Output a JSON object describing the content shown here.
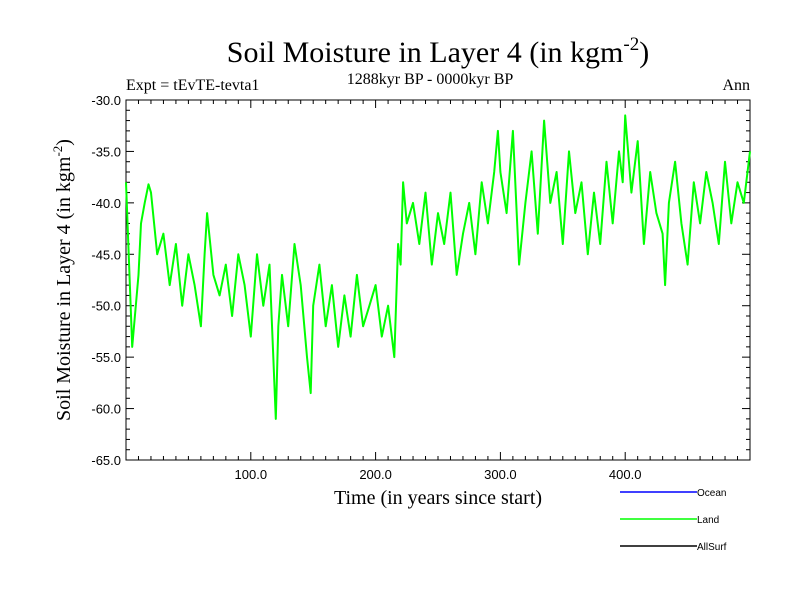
{
  "chart_data": {
    "type": "line",
    "title_main": "Soil Moisture in Layer 4 (in kgm",
    "title_sup": "-2",
    "title_close": ")",
    "subtitle_left": "Expt = tEvTE-tevta1",
    "subtitle_center": "1288kyr BP - 0000kyr BP",
    "subtitle_right": "Ann",
    "ylabel_main": "Soil Moisture in Layer 4 (in kgm",
    "ylabel_sup": "-2",
    "ylabel_close": ")",
    "xlabel": "Time (in years since start)",
    "xlim": [
      0,
      500
    ],
    "ylim": [
      -65,
      -30
    ],
    "y_ticks": [
      -30.0,
      -35.0,
      -40.0,
      -45.0,
      -50.0,
      -55.0,
      -60.0,
      -65.0
    ],
    "y_tick_labels": [
      "-30.0",
      "-35.0",
      "-40.0",
      "-45.0",
      "-50.0",
      "-55.0",
      "-60.0",
      "-65.0"
    ],
    "x_ticks": [
      100,
      200,
      300,
      400
    ],
    "x_tick_labels": [
      "100.0",
      "200.0",
      "300.0",
      "400.0"
    ],
    "legend": [
      {
        "name": "Ocean",
        "color": "#0000ff"
      },
      {
        "name": "Land",
        "color": "#00ff00"
      },
      {
        "name": "AllSurf",
        "color": "#000000"
      }
    ],
    "series": [
      {
        "name": "Land",
        "color": "#00ff00",
        "x": [
          0,
          5,
          10,
          12,
          15,
          18,
          20,
          25,
          30,
          35,
          40,
          45,
          50,
          55,
          60,
          63,
          65,
          70,
          75,
          80,
          85,
          90,
          95,
          100,
          105,
          110,
          115,
          118,
          120,
          122,
          125,
          130,
          135,
          140,
          145,
          148,
          150,
          155,
          160,
          165,
          170,
          175,
          180,
          185,
          190,
          195,
          200,
          205,
          210,
          215,
          218,
          220,
          222,
          225,
          230,
          235,
          240,
          245,
          250,
          255,
          260,
          265,
          270,
          275,
          280,
          285,
          290,
          295,
          298,
          300,
          305,
          310,
          315,
          320,
          325,
          330,
          335,
          340,
          345,
          350,
          355,
          360,
          365,
          370,
          375,
          380,
          385,
          390,
          395,
          398,
          400,
          405,
          410,
          415,
          420,
          425,
          430,
          432,
          435,
          440,
          445,
          450,
          455,
          460,
          465,
          470,
          475,
          480,
          485,
          490,
          495,
          500
        ],
        "values": [
          -38,
          -54,
          -47,
          -42,
          -40,
          -38.2,
          -39,
          -45,
          -43,
          -48,
          -44,
          -50,
          -45,
          -48,
          -52,
          -45,
          -41,
          -47,
          -49,
          -46,
          -51,
          -45,
          -48,
          -53,
          -45,
          -50,
          -46,
          -55,
          -61,
          -52,
          -47,
          -52,
          -44,
          -48,
          -55,
          -58.5,
          -50,
          -46,
          -52,
          -48,
          -54,
          -49,
          -53,
          -47,
          -52,
          -50,
          -48,
          -53,
          -50,
          -55,
          -44,
          -46,
          -38,
          -42,
          -40,
          -44,
          -39,
          -46,
          -41,
          -44,
          -39,
          -47,
          -43,
          -40,
          -45,
          -38,
          -42,
          -37,
          -33,
          -37,
          -41,
          -33,
          -46,
          -40,
          -35,
          -43,
          -32,
          -40,
          -37,
          -44,
          -35,
          -41,
          -38,
          -45,
          -39,
          -44,
          -36,
          -42,
          -35,
          -38,
          -31.5,
          -39,
          -34,
          -44,
          -37,
          -41,
          -43,
          -48,
          -40,
          -36,
          -42,
          -46,
          -38,
          -42,
          -37,
          -40,
          -44,
          -36,
          -42,
          -38,
          -40,
          -35
        ]
      }
    ]
  }
}
